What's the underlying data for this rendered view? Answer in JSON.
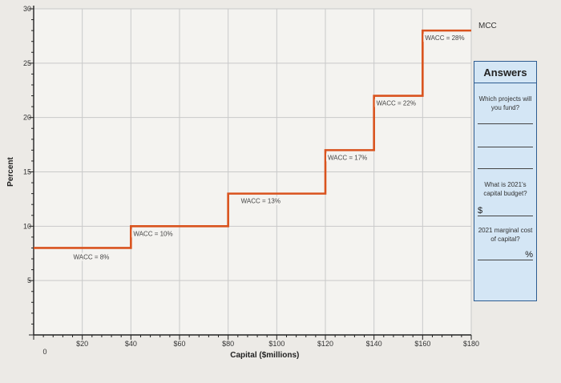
{
  "chart_data": {
    "type": "line",
    "step": true,
    "xlabel": "Capital ($millions)",
    "ylabel": "Percent",
    "xlim": [
      0,
      180
    ],
    "ylim": [
      0,
      30
    ],
    "x_ticks": [
      "$20",
      "$40",
      "$60",
      "$80",
      "$100",
      "$120",
      "$140",
      "$160",
      "$180"
    ],
    "y_ticks": [
      "5",
      "10",
      "15",
      "20",
      "25",
      "30"
    ],
    "origin_label": "0",
    "grid": true,
    "series": [
      {
        "name": "MCC",
        "color": "#d9531e",
        "steps": [
          {
            "x_start": 0,
            "x_end": 40,
            "y": 8,
            "label": "WACC = 8%"
          },
          {
            "x_start": 40,
            "x_end": 80,
            "y": 10,
            "label": "WACC = 10%"
          },
          {
            "x_start": 80,
            "x_end": 120,
            "y": 13,
            "label": "WACC = 13%"
          },
          {
            "x_start": 120,
            "x_end": 140,
            "y": 17,
            "label": "WACC = 17%"
          },
          {
            "x_start": 140,
            "x_end": 160,
            "y": 22,
            "label": "WACC = 22%"
          },
          {
            "x_start": 160,
            "x_end": 180,
            "y": 28,
            "label": "WACC = 28%"
          }
        ]
      }
    ]
  },
  "answers": {
    "title": "Answers",
    "q1": "Which projects will you fund?",
    "q2": "What is 2021's capital budget?",
    "q2_prefix": "$",
    "q3": "2021 marginal cost of capital?",
    "q3_suffix": "%"
  }
}
